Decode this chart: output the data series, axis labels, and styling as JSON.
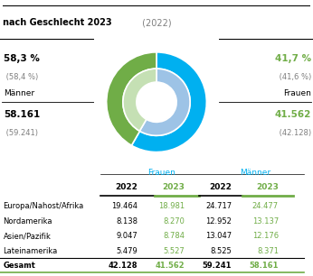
{
  "title_bold": "nach Geschlecht 2023",
  "title_light": " (2022)",
  "left_pct_bold": "58,3 %",
  "left_pct_light": " (58,4 %)",
  "left_label": "Männer",
  "left_count_bold": "58.161",
  "left_count_light": " (59.241)",
  "right_pct_bold": "41,7 %",
  "right_pct_light": " (41,6 %)",
  "right_label": "Frauen",
  "right_count_bold": "41.562",
  "right_count_light": " (42.128)",
  "donut_2023_maenner": 58.3,
  "donut_2023_frauen": 41.7,
  "donut_2022_maenner": 58.4,
  "donut_2022_frauen": 41.6,
  "color_maenner_2023": "#00b0f0",
  "color_frauen_2023": "#70ad47",
  "color_maenner_2022": "#9dc3e6",
  "color_frauen_2022": "#c5e0b4",
  "color_green": "#70ad47",
  "color_blue": "#00b0f0",
  "table_header_group1": "Frauen",
  "table_header_group2": "Männer",
  "col_headers": [
    "2022",
    "2023",
    "2022",
    "2023"
  ],
  "row_labels": [
    "Europa/Nahost/Afrika",
    "Nordamerika",
    "Asien/Pazifik",
    "Lateinamerika",
    "Gesamt"
  ],
  "data_frauen_2022": [
    19464,
    8138,
    9047,
    5479,
    42128
  ],
  "data_frauen_2023": [
    18981,
    8270,
    8784,
    5527,
    41562
  ],
  "data_maenner_2022": [
    24717,
    12952,
    13047,
    8525,
    59241
  ],
  "data_maenner_2023": [
    24477,
    13137,
    12176,
    8371,
    58161
  ],
  "bg_color": "#ffffff"
}
